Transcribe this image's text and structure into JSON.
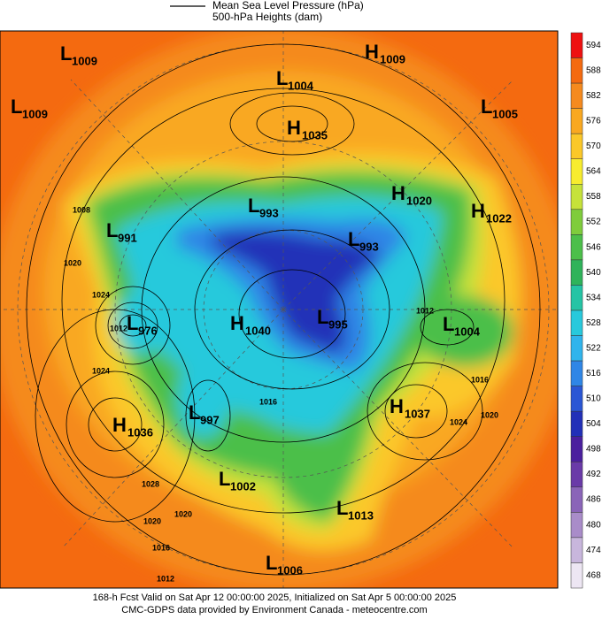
{
  "legend": {
    "line_label": "Mean Sea Level Pressure (hPa)",
    "fill_label": "500-hPa Heights (dam)"
  },
  "colorbar": [
    {
      "value": 594,
      "color": "#ee1111"
    },
    {
      "value": 588,
      "color": "#f46a10"
    },
    {
      "value": 582,
      "color": "#f58a1e"
    },
    {
      "value": 576,
      "color": "#f9a821"
    },
    {
      "value": 570,
      "color": "#fbc829"
    },
    {
      "value": 564,
      "color": "#f7ec2e"
    },
    {
      "value": 558,
      "color": "#c6e23a"
    },
    {
      "value": 552,
      "color": "#7fcc3c"
    },
    {
      "value": 546,
      "color": "#4cbf4a"
    },
    {
      "value": 540,
      "color": "#2fb35a"
    },
    {
      "value": 534,
      "color": "#25c4a5"
    },
    {
      "value": 528,
      "color": "#28c9dc"
    },
    {
      "value": 522,
      "color": "#30b4ec"
    },
    {
      "value": 516,
      "color": "#2f86e6"
    },
    {
      "value": 510,
      "color": "#2a56d4"
    },
    {
      "value": 504,
      "color": "#2230b8"
    },
    {
      "value": 498,
      "color": "#4b1f9e"
    },
    {
      "value": 492,
      "color": "#6a3aa8"
    },
    {
      "value": 486,
      "color": "#8a64b8"
    },
    {
      "value": 480,
      "color": "#a98cc9"
    },
    {
      "value": 474,
      "color": "#c8b6dc"
    },
    {
      "value": 468,
      "color": "#ede6f3"
    }
  ],
  "centers": [
    {
      "type": "L",
      "value": "1009"
    },
    {
      "type": "L",
      "value": "1009"
    },
    {
      "type": "H",
      "value": "1009"
    },
    {
      "type": "L",
      "value": "1004"
    },
    {
      "type": "L",
      "value": "1005"
    },
    {
      "type": "H",
      "value": "1035"
    },
    {
      "type": "L",
      "value": "993"
    },
    {
      "type": "H",
      "value": "1020"
    },
    {
      "type": "H",
      "value": "1022"
    },
    {
      "type": "L",
      "value": "991"
    },
    {
      "type": "L",
      "value": "993"
    },
    {
      "type": "L",
      "value": "976"
    },
    {
      "type": "H",
      "value": "1040"
    },
    {
      "type": "L",
      "value": "995"
    },
    {
      "type": "L",
      "value": "1004"
    },
    {
      "type": "H",
      "value": "1037"
    },
    {
      "type": "H",
      "value": "1036"
    },
    {
      "type": "L",
      "value": "997"
    },
    {
      "type": "L",
      "value": "1002"
    },
    {
      "type": "L",
      "value": "1013"
    },
    {
      "type": "L",
      "value": "1006"
    }
  ],
  "contour_labels": [
    "1008",
    "1020",
    "1024",
    "1012",
    "1024",
    "1028",
    "1020",
    "1020",
    "1016",
    "1012",
    "1012",
    "1016",
    "1024",
    "1020",
    "1016"
  ],
  "footer": {
    "line1": "168-h Fcst Valid on Sat Apr 12 00:00:00 2025, Initialized on Sat Apr  5 00:00:00 2025",
    "line2": "CMC-GDPS data provided by Environment Canada - meteocentre.com"
  }
}
